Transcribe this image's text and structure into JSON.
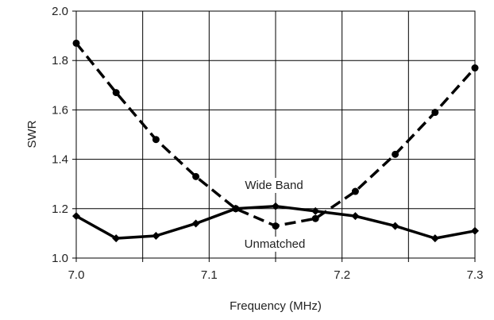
{
  "chart_data": {
    "type": "line",
    "title": "",
    "xlabel": "Frequency (MHz)",
    "ylabel": "SWR",
    "xlim": [
      7.0,
      7.3
    ],
    "ylim": [
      1.0,
      2.0
    ],
    "xticks": [
      "7.0",
      "7.1",
      "7.2",
      "7.3"
    ],
    "yticks": [
      "1.0",
      "1.2",
      "1.4",
      "1.6",
      "1.8",
      "2.0"
    ],
    "grid": true,
    "annotations": [
      "Wide Band",
      "Unmatched"
    ],
    "series": [
      {
        "style": "dashed",
        "color": "#000000",
        "marker": "circle",
        "x": [
          7.0,
          7.03,
          7.06,
          7.09,
          7.12,
          7.15,
          7.18,
          7.21,
          7.24,
          7.27,
          7.3
        ],
        "y": [
          1.87,
          1.67,
          1.48,
          1.33,
          1.2,
          1.13,
          1.16,
          1.27,
          1.42,
          1.59,
          1.77
        ]
      },
      {
        "style": "solid",
        "color": "#000000",
        "marker": "diamond",
        "x": [
          7.0,
          7.03,
          7.06,
          7.09,
          7.12,
          7.15,
          7.18,
          7.21,
          7.24,
          7.27,
          7.3
        ],
        "y": [
          1.17,
          1.08,
          1.09,
          1.14,
          1.2,
          1.21,
          1.19,
          1.17,
          1.13,
          1.08,
          1.11
        ]
      }
    ]
  }
}
